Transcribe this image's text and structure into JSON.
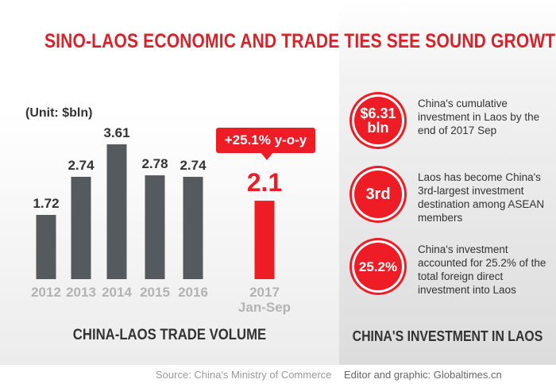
{
  "title": "SINO-LAOS ECONOMIC AND TRADE TIES SEE SOUND GROWTH",
  "chart_data": {
    "type": "bar",
    "unit": "(Unit: $bln)",
    "title": "CHINA-LAOS TRADE VOLUME",
    "categories": [
      "2012",
      "2013",
      "2014",
      "2015",
      "2016",
      "2017 Jan-Sep"
    ],
    "values": [
      1.72,
      2.74,
      3.61,
      2.78,
      2.74,
      2.1
    ],
    "value_labels": [
      "1.72",
      "2.74",
      "3.61",
      "2.78",
      "2.74",
      "2.1"
    ],
    "highlight_index": 5,
    "highlight_note": "+25.1% y-o-y",
    "colors": {
      "bar": "#555a5e",
      "highlight": "#ee1c24",
      "axis_label": "#b3b3b3"
    },
    "ylim": [
      0,
      3.61
    ],
    "grid": false
  },
  "investment": {
    "caption": "CHINA'S INVESTMENT IN LAOS",
    "items": [
      {
        "badge": "$6.31 bln",
        "text": "China's cumulative investment in Laos by the end of 2017 Sep"
      },
      {
        "badge": "3rd",
        "text": "Laos has become China's 3rd-largest investment destination among ASEAN members"
      },
      {
        "badge": "25.2%",
        "text": "China's investment accounted for 25.2% of the total foreign direct investment into Laos"
      }
    ]
  },
  "footer": {
    "source": "Source: China's Ministry of Commerce",
    "credit": "Editor and graphic: Globaltimes.cn"
  }
}
